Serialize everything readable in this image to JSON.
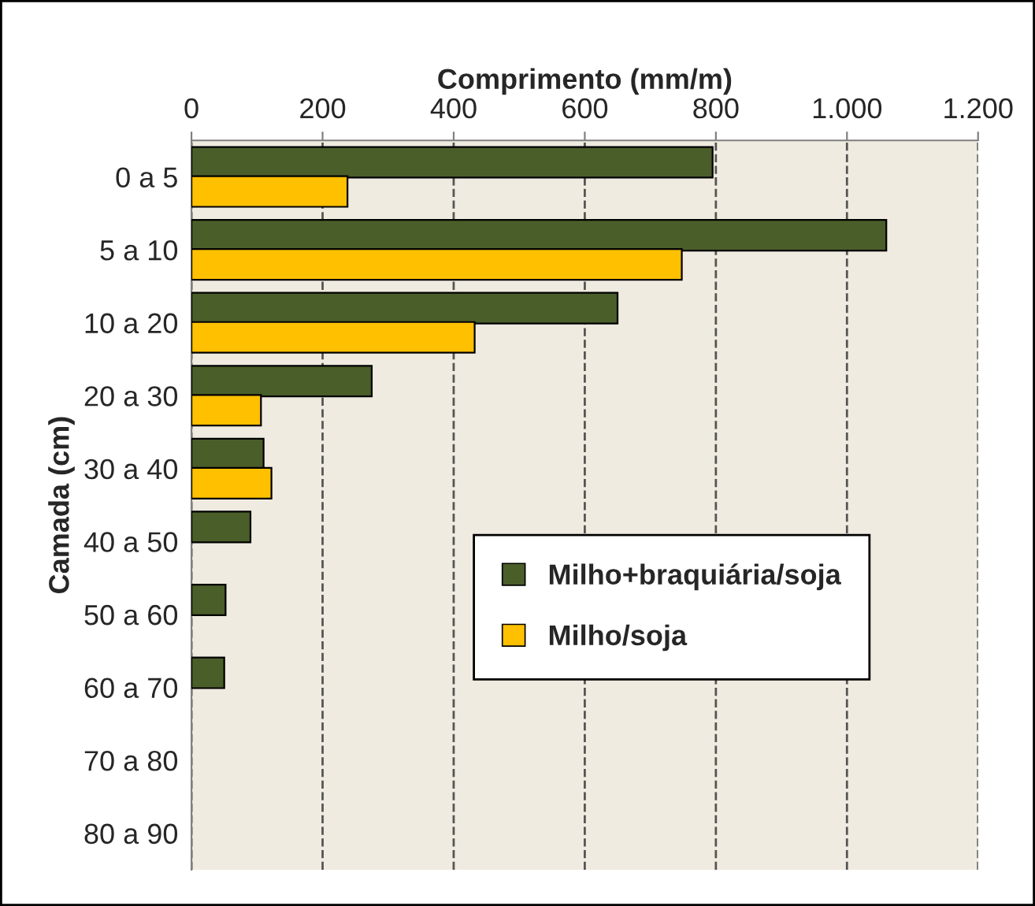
{
  "chart_data": {
    "type": "bar",
    "orientation": "horizontal",
    "xlabel": "Comprimento (mm/m)",
    "ylabel": "Camada (cm)",
    "categories": [
      "0 a 5",
      "5 a 10",
      "10 a 20",
      "20 a 30",
      "30 a 40",
      "40 a 50",
      "50 a 60",
      "60 a 70",
      "70 a 80",
      "80 a 90"
    ],
    "series": [
      {
        "name": "Milho+braquiária/soja",
        "color": "#4a5e2a",
        "values": [
          795,
          1060,
          650,
          275,
          110,
          90,
          52,
          50,
          null,
          null
        ]
      },
      {
        "name": "Milho/soja",
        "color": "#ffc000",
        "values": [
          238,
          748,
          432,
          106,
          122,
          null,
          null,
          null,
          null,
          null
        ]
      }
    ],
    "xlim": [
      0,
      1200
    ],
    "xticks": [
      0,
      200,
      400,
      600,
      800,
      {
        "value": 1000,
        "label": "1.000"
      },
      {
        "value": 1200,
        "label": "1.200"
      }
    ],
    "grid": "x",
    "legend": "right"
  }
}
